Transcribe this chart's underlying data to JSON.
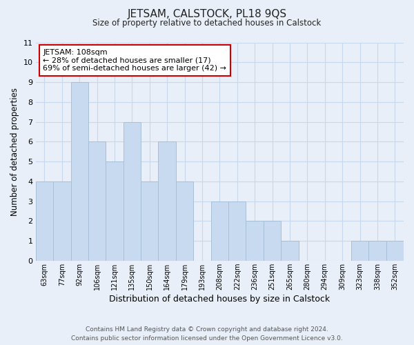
{
  "title": "JETSAM, CALSTOCK, PL18 9QS",
  "subtitle": "Size of property relative to detached houses in Calstock",
  "xlabel": "Distribution of detached houses by size in Calstock",
  "ylabel": "Number of detached properties",
  "footer_line1": "Contains HM Land Registry data © Crown copyright and database right 2024.",
  "footer_line2": "Contains public sector information licensed under the Open Government Licence v3.0.",
  "categories": [
    "63sqm",
    "77sqm",
    "92sqm",
    "106sqm",
    "121sqm",
    "135sqm",
    "150sqm",
    "164sqm",
    "179sqm",
    "193sqm",
    "208sqm",
    "222sqm",
    "236sqm",
    "251sqm",
    "265sqm",
    "280sqm",
    "294sqm",
    "309sqm",
    "323sqm",
    "338sqm",
    "352sqm"
  ],
  "values": [
    4,
    4,
    9,
    6,
    5,
    7,
    4,
    6,
    4,
    0,
    3,
    3,
    2,
    2,
    1,
    0,
    0,
    0,
    1,
    1,
    1
  ],
  "bar_color": "#c8daf0",
  "bar_edge_color": "#a8bfd8",
  "annotation_title": "JETSAM: 108sqm",
  "annotation_line1": "← 28% of detached houses are smaller (17)",
  "annotation_line2": "69% of semi-detached houses are larger (42) →",
  "annotation_box_color": "#ffffff",
  "annotation_box_edge": "#cc0000",
  "ylim": [
    0,
    11
  ],
  "yticks": [
    0,
    1,
    2,
    3,
    4,
    5,
    6,
    7,
    8,
    9,
    10,
    11
  ],
  "grid_color": "#c8d8ec",
  "background_color": "#e8eff8"
}
